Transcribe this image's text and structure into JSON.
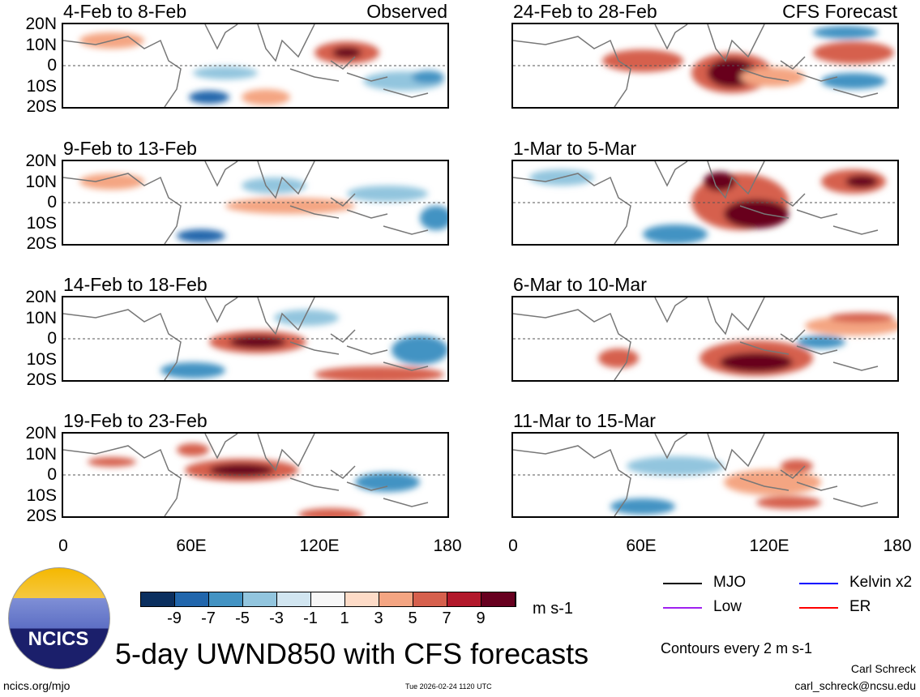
{
  "panels": [
    {
      "title": "4-Feb to 8-Feb",
      "label": "Observed"
    },
    {
      "title": "24-Feb to 28-Feb",
      "label": "CFS Forecast"
    },
    {
      "title": "9-Feb to 13-Feb"
    },
    {
      "title": "1-Mar to 5-Mar"
    },
    {
      "title": "14-Feb to 18-Feb"
    },
    {
      "title": "6-Mar to 10-Mar"
    },
    {
      "title": "19-Feb to 23-Feb"
    },
    {
      "title": "11-Mar to 15-Mar"
    }
  ],
  "lat_ticks": [
    "20N",
    "10N",
    "0",
    "10S",
    "20S"
  ],
  "lon_ticks": [
    "0",
    "60E",
    "120E",
    "180"
  ],
  "colorbar": {
    "colors": [
      "#0b2f5f",
      "#2166ac",
      "#4393c3",
      "#92c5de",
      "#d1e5f0",
      "#f7f7f7",
      "#fddbc7",
      "#f4a582",
      "#d6604d",
      "#b2182b",
      "#67001f"
    ],
    "labels": [
      "-9",
      "-7",
      "-5",
      "-3",
      "-1",
      "1",
      "3",
      "5",
      "7",
      "9"
    ],
    "units": "m s-1"
  },
  "legend": {
    "items": [
      {
        "label": "MJO",
        "color": "#000000"
      },
      {
        "label": "Kelvin x2",
        "color": "#0000ff"
      },
      {
        "label": "Low",
        "color": "#a020f0"
      },
      {
        "label": "ER",
        "color": "#ff0000"
      }
    ],
    "contours": "Contours every 2 m s-1"
  },
  "title": "5-day UWND850 with CFS forecasts",
  "logo_text": "NCICS",
  "footer": {
    "url": "ncics.org/mjo",
    "timestamp": "Tue 2026-02-24 1120 UTC",
    "author": "Carl Schreck",
    "email": "carl_schreck@ncsu.edu"
  }
}
